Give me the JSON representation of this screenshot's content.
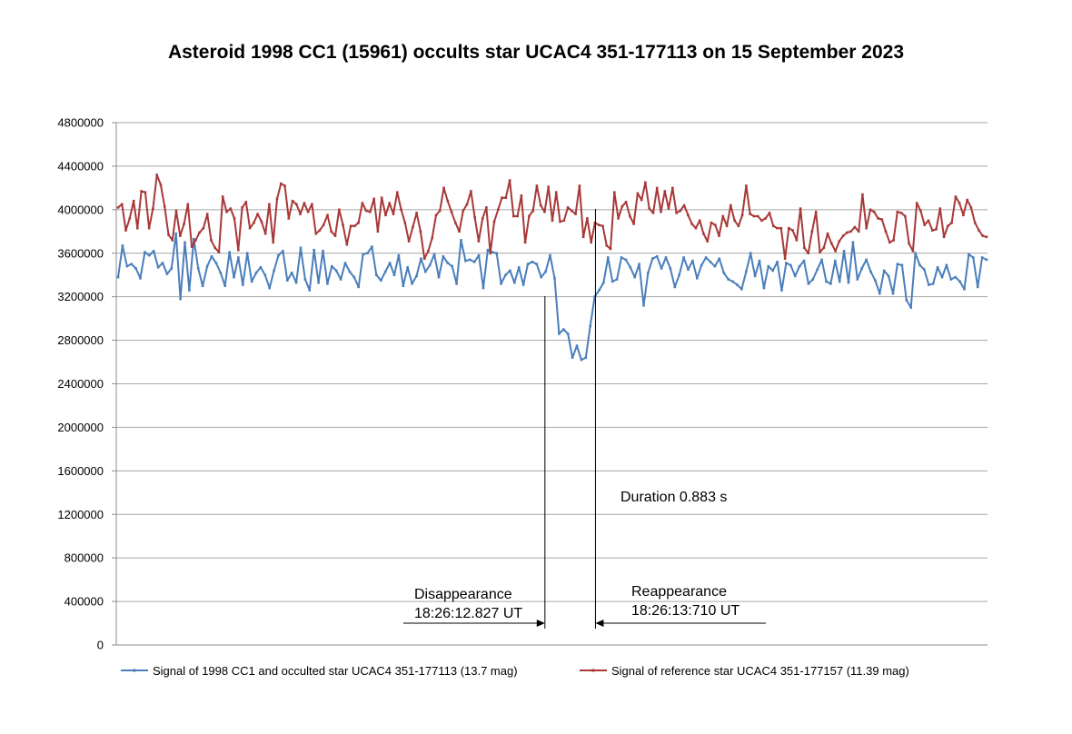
{
  "chart_data": {
    "type": "line",
    "title": "Asteroid 1998 CC1 (15961) occults star UCAC4 351-177113 on 15 September 2023",
    "xlabel": "",
    "ylabel": "",
    "ylim": [
      0,
      4800000
    ],
    "yticks": [
      0,
      400000,
      800000,
      1200000,
      1600000,
      2000000,
      2400000,
      2800000,
      3200000,
      3600000,
      4000000,
      4400000,
      4800000
    ],
    "grid": true,
    "legend_position": "bottom",
    "series": [
      {
        "name": "Signal of 1998 CC1 and occulted star UCAC4 351-177113 (13.7 mag)",
        "color": "#4a7ebb",
        "values": [
          3380000,
          3670000,
          3480000,
          3500000,
          3460000,
          3370000,
          3610000,
          3580000,
          3620000,
          3470000,
          3510000,
          3410000,
          3460000,
          3780000,
          3180000,
          3700000,
          3260000,
          3730000,
          3460000,
          3300000,
          3480000,
          3570000,
          3510000,
          3420000,
          3300000,
          3610000,
          3380000,
          3560000,
          3310000,
          3600000,
          3340000,
          3420000,
          3470000,
          3400000,
          3280000,
          3440000,
          3580000,
          3620000,
          3350000,
          3420000,
          3330000,
          3650000,
          3360000,
          3260000,
          3630000,
          3330000,
          3620000,
          3320000,
          3480000,
          3440000,
          3360000,
          3510000,
          3430000,
          3380000,
          3290000,
          3590000,
          3600000,
          3660000,
          3400000,
          3350000,
          3430000,
          3510000,
          3400000,
          3580000,
          3300000,
          3470000,
          3320000,
          3390000,
          3550000,
          3430000,
          3490000,
          3590000,
          3380000,
          3570000,
          3510000,
          3480000,
          3320000,
          3720000,
          3530000,
          3540000,
          3520000,
          3580000,
          3280000,
          3630000,
          3610000,
          3600000,
          3320000,
          3400000,
          3440000,
          3330000,
          3470000,
          3310000,
          3500000,
          3520000,
          3500000,
          3380000,
          3430000,
          3580000,
          3370000,
          2860000,
          2900000,
          2860000,
          2640000,
          2750000,
          2620000,
          2640000,
          2930000,
          3200000,
          3260000,
          3330000,
          3560000,
          3340000,
          3360000,
          3560000,
          3540000,
          3470000,
          3380000,
          3500000,
          3120000,
          3420000,
          3550000,
          3570000,
          3460000,
          3560000,
          3460000,
          3290000,
          3400000,
          3560000,
          3450000,
          3530000,
          3370000,
          3490000,
          3560000,
          3520000,
          3480000,
          3550000,
          3420000,
          3360000,
          3340000,
          3310000,
          3270000,
          3430000,
          3600000,
          3390000,
          3530000,
          3280000,
          3480000,
          3440000,
          3520000,
          3260000,
          3510000,
          3490000,
          3390000,
          3480000,
          3530000,
          3320000,
          3360000,
          3450000,
          3540000,
          3340000,
          3320000,
          3530000,
          3340000,
          3620000,
          3330000,
          3700000,
          3360000,
          3460000,
          3540000,
          3430000,
          3350000,
          3230000,
          3440000,
          3390000,
          3230000,
          3500000,
          3490000,
          3170000,
          3100000,
          3600000,
          3490000,
          3450000,
          3310000,
          3320000,
          3470000,
          3380000,
          3490000,
          3360000,
          3380000,
          3340000,
          3270000,
          3590000,
          3560000,
          3290000,
          3560000,
          3540000
        ]
      },
      {
        "name": "Signal of reference star UCAC4 351-177157 (11.39 mag)",
        "color": "#a83838",
        "values": [
          4020000,
          4050000,
          3810000,
          3920000,
          4080000,
          3830000,
          4170000,
          4160000,
          3830000,
          4010000,
          4320000,
          4230000,
          4030000,
          3770000,
          3720000,
          3990000,
          3760000,
          3870000,
          4050000,
          3660000,
          3720000,
          3790000,
          3830000,
          3960000,
          3720000,
          3650000,
          3610000,
          4120000,
          3980000,
          4010000,
          3920000,
          3630000,
          4020000,
          4070000,
          3830000,
          3880000,
          3960000,
          3890000,
          3780000,
          4050000,
          3700000,
          4100000,
          4240000,
          4220000,
          3920000,
          4080000,
          4050000,
          3960000,
          4060000,
          3980000,
          4050000,
          3780000,
          3810000,
          3860000,
          3950000,
          3800000,
          3760000,
          4000000,
          3860000,
          3680000,
          3850000,
          3850000,
          3880000,
          4060000,
          3990000,
          3980000,
          4100000,
          3800000,
          4110000,
          3950000,
          4060000,
          3960000,
          4160000,
          4000000,
          3880000,
          3710000,
          3840000,
          3970000,
          3800000,
          3550000,
          3620000,
          3740000,
          3950000,
          3990000,
          4200000,
          4080000,
          3980000,
          3880000,
          3800000,
          3990000,
          4050000,
          4170000,
          3930000,
          3710000,
          3920000,
          4020000,
          3600000,
          3890000,
          4000000,
          4110000,
          4110000,
          4270000,
          3940000,
          3940000,
          4130000,
          3700000,
          3940000,
          3990000,
          4220000,
          4040000,
          3980000,
          4210000,
          3900000,
          4160000,
          3890000,
          3900000,
          4020000,
          3990000,
          3960000,
          4220000,
          3750000,
          3920000,
          3700000,
          3880000,
          3860000,
          3850000,
          3670000,
          3640000,
          4160000,
          3920000,
          4030000,
          4070000,
          3940000,
          3870000,
          4150000,
          4090000,
          4250000,
          4010000,
          3970000,
          4200000,
          3980000,
          4170000,
          4010000,
          4200000,
          3970000,
          3990000,
          4040000,
          3950000,
          3870000,
          3830000,
          3900000,
          3780000,
          3710000,
          3880000,
          3860000,
          3760000,
          3940000,
          3850000,
          4040000,
          3900000,
          3850000,
          3950000,
          4220000,
          3960000,
          3940000,
          3940000,
          3900000,
          3920000,
          3970000,
          3850000,
          3830000,
          3830000,
          3550000,
          3830000,
          3810000,
          3720000,
          4010000,
          3650000,
          3600000,
          3800000,
          3980000,
          3610000,
          3650000,
          3780000,
          3690000,
          3620000,
          3710000,
          3760000,
          3790000,
          3800000,
          3840000,
          3800000,
          4140000,
          3830000,
          4000000,
          3980000,
          3920000,
          3910000,
          3800000,
          3700000,
          3720000,
          3980000,
          3970000,
          3940000,
          3690000,
          3620000,
          4060000,
          3990000,
          3860000,
          3900000,
          3810000,
          3820000,
          4010000,
          3750000,
          3850000,
          3880000,
          4120000,
          4060000,
          3950000,
          4090000,
          4020000,
          3880000,
          3810000,
          3760000,
          3750000
        ]
      }
    ],
    "annotations": {
      "duration": "Duration 0.883 s",
      "disappearance_label": "Disappearance",
      "disappearance_time": "18:26:12.827 UT",
      "reappearance_label": "Reappearance",
      "reappearance_time": "18:26:13:710 UT"
    },
    "event_fraction": {
      "disappearance": 0.492,
      "reappearance": 0.55
    }
  }
}
